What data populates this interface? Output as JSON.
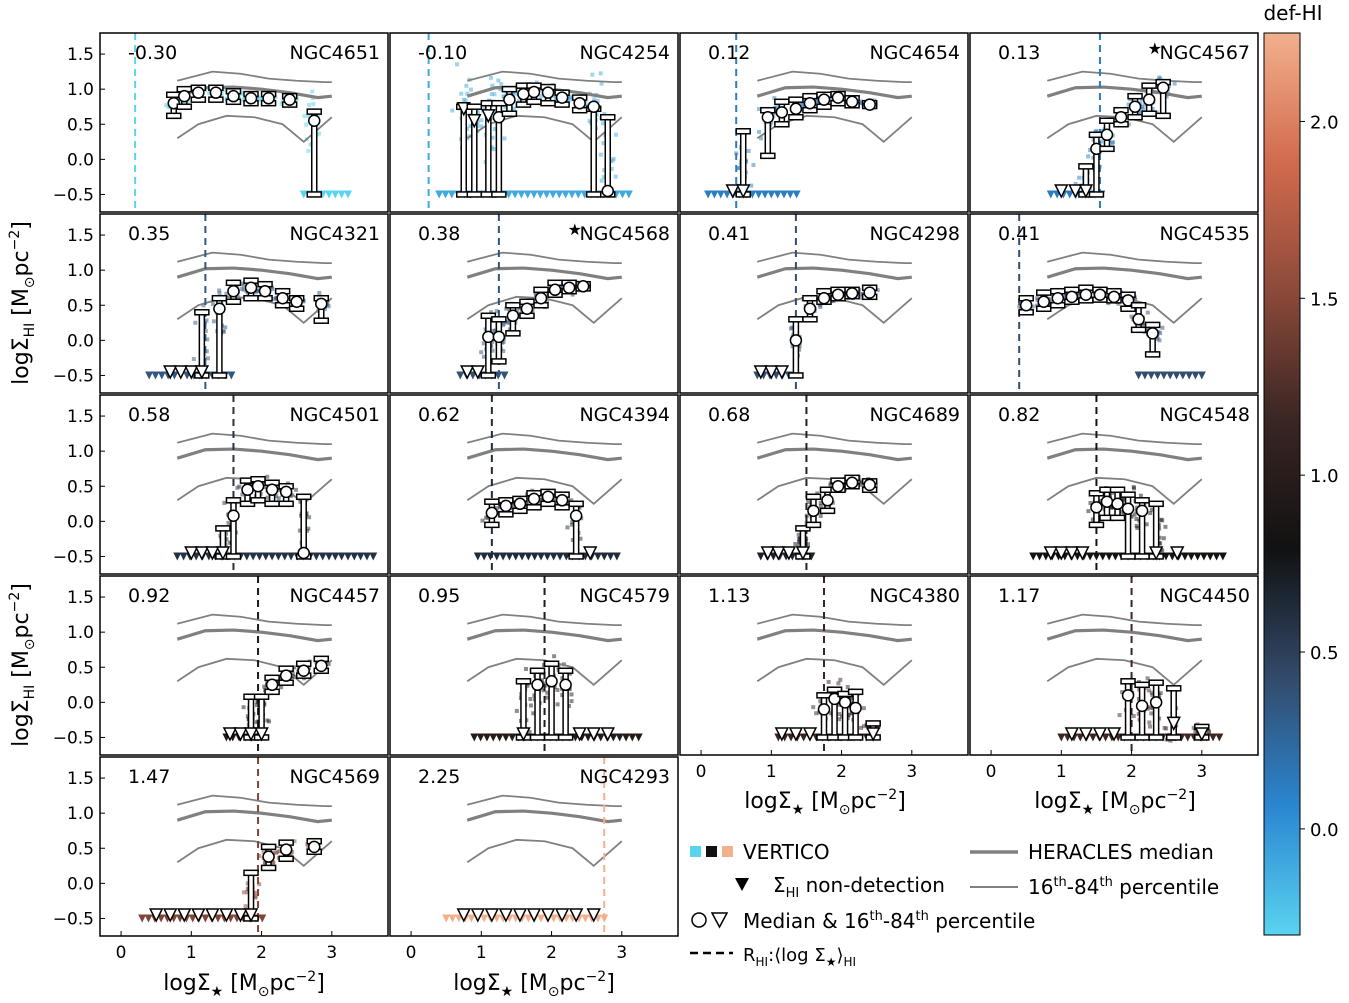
{
  "chart_data": {
    "type": "scatter",
    "colorbar": {
      "label": "def-HI",
      "range": [
        -0.3,
        2.25
      ],
      "ticks": [
        "0.0",
        "0.5",
        "1.0",
        "1.5",
        "2.0"
      ],
      "tick_values": [
        0.0,
        0.5,
        1.0,
        1.5,
        2.0
      ],
      "colormap": [
        "#5ad3f0",
        "#2a86d0",
        "#334a6a",
        "#111111",
        "#3a2624",
        "#8c4a3a",
        "#d16b4e",
        "#f2b08c"
      ]
    },
    "xlabel": "logΣ★ [M☉pc⁻²]",
    "ylabel": "logΣHI [M☉pc⁻²]",
    "xlim": [
      -0.3,
      3.8
    ],
    "ylim": [
      -0.75,
      1.8
    ],
    "xticks": [
      "0",
      "1",
      "2",
      "3"
    ],
    "xtick_values": [
      0,
      1,
      2,
      3
    ],
    "yticks": [
      "−0.5",
      "0.0",
      "0.5",
      "1.0",
      "1.5"
    ],
    "ytick_values": [
      -0.5,
      0.0,
      0.5,
      1.0,
      1.5
    ],
    "heracles_median": {
      "x": [
        0.8,
        1.2,
        1.6,
        2.0,
        2.4,
        2.8,
        3.0
      ],
      "y": [
        0.9,
        1.02,
        1.03,
        1.0,
        0.95,
        0.88,
        0.9
      ]
    },
    "heracles_p84": {
      "x": [
        0.8,
        1.3,
        1.7,
        2.1,
        2.5,
        2.9,
        3.0
      ],
      "y": [
        1.12,
        1.25,
        1.22,
        1.15,
        1.12,
        1.1,
        1.1
      ]
    },
    "heracles_p16": {
      "x": [
        0.8,
        1.1,
        1.5,
        1.9,
        2.3,
        2.6,
        3.0
      ],
      "y": [
        0.3,
        0.5,
        0.62,
        0.6,
        0.5,
        0.25,
        0.6
      ]
    },
    "panels": [
      {
        "name": "NGC4651",
        "def": "-0.30",
        "defv": -0.3,
        "star": false,
        "rhi": 0.2,
        "x": [
          0.75,
          0.9,
          1.1,
          1.35,
          1.6,
          1.85,
          2.1,
          2.4,
          2.75
        ],
        "y": [
          0.8,
          0.9,
          0.95,
          0.95,
          0.9,
          0.87,
          0.87,
          0.85,
          0.55
        ],
        "lo": [
          0.62,
          0.75,
          0.85,
          0.85,
          0.82,
          0.8,
          0.8,
          0.78,
          -0.5
        ],
        "hi": [
          0.92,
          1.0,
          1.02,
          1.02,
          0.97,
          0.93,
          0.93,
          0.9,
          0.68
        ],
        "tri": [],
        "nd": [
          2.6,
          3.25
        ]
      },
      {
        "name": "NGC4254",
        "def": "-0.10",
        "defv": -0.1,
        "star": false,
        "rhi": 0.25,
        "x": [
          0.75,
          0.9,
          1.1,
          1.25,
          1.4,
          1.6,
          1.75,
          1.95,
          2.15,
          2.4,
          2.6,
          2.8
        ],
        "y": [
          0.72,
          0.55,
          0.62,
          0.6,
          0.85,
          0.93,
          0.96,
          0.95,
          0.88,
          0.8,
          0.75,
          -0.45
        ],
        "lo": [
          -0.5,
          -0.5,
          -0.5,
          -0.5,
          0.65,
          0.78,
          0.82,
          0.8,
          0.78,
          0.7,
          -0.5,
          -0.5
        ],
        "hi": [
          0.75,
          0.75,
          0.8,
          0.8,
          1.0,
          1.05,
          1.05,
          1.03,
          0.95,
          0.88,
          0.72,
          0.6
        ],
        "tri": [
          0,
          1,
          2
        ],
        "nd": [
          0.4,
          3.1
        ]
      },
      {
        "name": "NGC4654",
        "def": "0.12",
        "defv": 0.12,
        "star": false,
        "rhi": 0.5,
        "x": [
          0.45,
          0.6,
          0.95,
          1.15,
          1.35,
          1.55,
          1.75,
          1.95,
          2.15,
          2.4
        ],
        "y": [
          -0.45,
          -0.45,
          0.6,
          0.67,
          0.72,
          0.8,
          0.85,
          0.88,
          0.82,
          0.78
        ],
        "lo": [
          -0.5,
          -0.5,
          0.05,
          0.5,
          0.6,
          0.7,
          0.75,
          0.8,
          0.77,
          0.76
        ],
        "hi": [
          -0.5,
          0.4,
          0.7,
          0.82,
          0.85,
          0.9,
          0.92,
          0.93,
          0.87,
          0.8
        ],
        "tri": [
          0,
          1
        ],
        "nd": [
          0.1,
          1.4
        ]
      },
      {
        "name": "NGC4567",
        "def": "0.13",
        "defv": 0.13,
        "star": true,
        "rhi": 1.55,
        "x": [
          1.0,
          1.2,
          1.35,
          1.5,
          1.65,
          1.85,
          2.05,
          2.25,
          2.45
        ],
        "y": [
          -0.45,
          -0.45,
          -0.45,
          0.15,
          0.35,
          0.6,
          0.75,
          0.85,
          1.02
        ],
        "lo": [
          -0.5,
          -0.5,
          -0.5,
          -0.5,
          0.15,
          0.5,
          0.6,
          0.65,
          0.62
        ],
        "hi": [
          -0.5,
          -0.5,
          -0.1,
          0.35,
          0.55,
          0.7,
          0.9,
          1.05,
          1.1
        ],
        "tri": [
          0,
          1,
          2
        ],
        "nd": [
          0.85,
          1.6
        ]
      },
      {
        "name": "NGC4321",
        "def": "0.35",
        "defv": 0.35,
        "star": false,
        "rhi": 1.2,
        "x": [
          0.7,
          0.85,
          1.0,
          1.15,
          1.4,
          1.6,
          1.85,
          2.05,
          2.3,
          2.5,
          2.85
        ],
        "y": [
          -0.45,
          -0.45,
          -0.45,
          -0.45,
          0.45,
          0.7,
          0.75,
          0.7,
          0.6,
          0.55,
          0.52
        ],
        "lo": [
          -0.5,
          -0.5,
          -0.5,
          -0.5,
          -0.5,
          0.55,
          0.6,
          0.6,
          0.5,
          0.45,
          0.28
        ],
        "hi": [
          -0.5,
          -0.5,
          -0.5,
          0.4,
          0.6,
          0.82,
          0.85,
          0.8,
          0.7,
          0.6,
          0.6
        ],
        "tri": [
          0,
          1,
          2,
          3
        ],
        "nd": [
          0.4,
          1.6
        ]
      },
      {
        "name": "NGC4568",
        "def": "0.38",
        "defv": 0.38,
        "star": true,
        "rhi": 1.25,
        "x": [
          0.8,
          0.95,
          1.1,
          1.25,
          1.45,
          1.65,
          1.85,
          2.05,
          2.25,
          2.45
        ],
        "y": [
          -0.45,
          -0.45,
          0.05,
          0.05,
          0.35,
          0.45,
          0.6,
          0.72,
          0.75,
          0.77
        ],
        "lo": [
          -0.5,
          -0.5,
          -0.5,
          -0.3,
          0.1,
          0.35,
          0.5,
          0.65,
          0.7,
          0.74
        ],
        "hi": [
          -0.5,
          -0.5,
          0.35,
          0.3,
          0.5,
          0.55,
          0.72,
          0.82,
          0.82,
          0.8
        ],
        "tri": [
          0,
          1
        ],
        "nd": [
          0.7,
          1.4
        ]
      },
      {
        "name": "NGC4298",
        "def": "0.41",
        "defv": 0.41,
        "star": false,
        "rhi": 1.35,
        "x": [
          0.85,
          1.0,
          1.15,
          1.35,
          1.55,
          1.75,
          1.95,
          2.15,
          2.4
        ],
        "y": [
          -0.45,
          -0.45,
          -0.45,
          0.0,
          0.45,
          0.6,
          0.65,
          0.67,
          0.68
        ],
        "lo": [
          -0.5,
          -0.5,
          -0.5,
          -0.5,
          0.3,
          0.55,
          0.6,
          0.63,
          0.62
        ],
        "hi": [
          -0.5,
          -0.5,
          -0.5,
          0.3,
          0.6,
          0.7,
          0.72,
          0.72,
          0.75
        ],
        "tri": [
          0,
          1,
          2
        ],
        "nd": [
          0.8,
          1.3
        ]
      },
      {
        "name": "NGC4535",
        "def": "0.41",
        "defv": 0.41,
        "star": false,
        "rhi": 0.4,
        "x": [
          0.5,
          0.75,
          0.95,
          1.15,
          1.35,
          1.55,
          1.75,
          1.95,
          2.1,
          2.3
        ],
        "y": [
          0.5,
          0.55,
          0.6,
          0.62,
          0.65,
          0.65,
          0.62,
          0.57,
          0.3,
          0.1
        ],
        "lo": [
          0.4,
          0.45,
          0.5,
          0.55,
          0.57,
          0.58,
          0.57,
          0.45,
          0.15,
          -0.2
        ],
        "hi": [
          0.6,
          0.68,
          0.7,
          0.72,
          0.75,
          0.72,
          0.7,
          0.65,
          0.5,
          0.22
        ],
        "tri": [],
        "nd": [
          2.1,
          3.0
        ]
      },
      {
        "name": "NGC4501",
        "def": "0.58",
        "defv": 0.58,
        "star": false,
        "rhi": 1.6,
        "x": [
          1.0,
          1.15,
          1.3,
          1.45,
          1.6,
          1.8,
          1.95,
          2.15,
          2.35,
          2.6
        ],
        "y": [
          -0.45,
          -0.45,
          -0.45,
          -0.45,
          0.08,
          0.45,
          0.5,
          0.45,
          0.42,
          -0.45
        ],
        "lo": [
          -0.5,
          -0.5,
          -0.5,
          -0.5,
          -0.5,
          0.25,
          0.3,
          0.25,
          0.25,
          -0.5
        ],
        "hi": [
          -0.5,
          -0.5,
          -0.5,
          -0.1,
          0.3,
          0.58,
          0.6,
          0.55,
          0.5,
          0.35
        ],
        "tri": [
          0,
          1,
          2,
          3
        ],
        "nd": [
          0.8,
          3.6
        ]
      },
      {
        "name": "NGC4394",
        "def": "0.62",
        "defv": 0.62,
        "star": false,
        "rhi": 1.15,
        "x": [
          1.15,
          1.35,
          1.55,
          1.75,
          1.95,
          2.15,
          2.35,
          2.55
        ],
        "y": [
          0.12,
          0.22,
          0.25,
          0.32,
          0.35,
          0.3,
          0.08,
          -0.45
        ],
        "lo": [
          -0.05,
          0.1,
          0.15,
          0.2,
          0.25,
          0.2,
          -0.5,
          -0.5
        ],
        "hi": [
          0.28,
          0.3,
          0.32,
          0.4,
          0.42,
          0.38,
          0.25,
          -0.5
        ],
        "tri": [
          7
        ],
        "nd": [
          0.95,
          3.0
        ]
      },
      {
        "name": "NGC4689",
        "def": "0.68",
        "defv": 0.68,
        "star": false,
        "rhi": 1.5,
        "x": [
          0.95,
          1.1,
          1.25,
          1.45,
          1.6,
          1.8,
          1.95,
          2.15,
          2.4
        ],
        "y": [
          -0.45,
          -0.45,
          -0.45,
          -0.45,
          0.15,
          0.3,
          0.5,
          0.55,
          0.52
        ],
        "lo": [
          -0.5,
          -0.5,
          -0.5,
          -0.5,
          -0.05,
          0.15,
          0.45,
          0.5,
          0.45
        ],
        "hi": [
          -0.5,
          -0.5,
          -0.5,
          -0.1,
          0.35,
          0.45,
          0.58,
          0.62,
          0.57
        ],
        "tri": [
          0,
          1,
          2,
          3
        ],
        "nd": [
          0.85,
          1.6
        ]
      },
      {
        "name": "NGC4548",
        "def": "0.82",
        "defv": 0.82,
        "star": false,
        "rhi": 1.5,
        "x": [
          0.85,
          1.0,
          1.15,
          1.3,
          1.5,
          1.65,
          1.8,
          1.95,
          2.15,
          2.35,
          2.65
        ],
        "y": [
          -0.45,
          -0.45,
          -0.45,
          -0.45,
          0.2,
          0.28,
          0.25,
          0.18,
          0.15,
          -0.45,
          -0.45
        ],
        "lo": [
          -0.5,
          -0.5,
          -0.5,
          -0.5,
          -0.05,
          0.05,
          0.05,
          -0.5,
          -0.5,
          -0.5,
          -0.5
        ],
        "hi": [
          -0.5,
          -0.5,
          -0.5,
          -0.5,
          0.4,
          0.45,
          0.45,
          0.38,
          0.3,
          0.25,
          -0.5
        ],
        "tri": [
          0,
          1,
          2,
          3,
          9,
          10
        ],
        "nd": [
          0.6,
          3.3
        ]
      },
      {
        "name": "NGC4457",
        "def": "0.92",
        "defv": 0.92,
        "star": false,
        "rhi": 1.95,
        "x": [
          1.55,
          1.7,
          1.85,
          2.0,
          2.15,
          2.35,
          2.6,
          2.85
        ],
        "y": [
          -0.45,
          -0.45,
          -0.45,
          -0.45,
          0.25,
          0.38,
          0.45,
          0.52
        ],
        "lo": [
          -0.5,
          -0.5,
          -0.5,
          -0.5,
          0.15,
          0.28,
          0.38,
          0.45
        ],
        "hi": [
          -0.5,
          -0.5,
          0.08,
          0.08,
          0.35,
          0.48,
          0.55,
          0.62
        ],
        "tri": [
          0,
          1,
          2,
          3
        ],
        "nd": [
          1.5,
          2.0
        ]
      },
      {
        "name": "NGC4579",
        "def": "0.95",
        "defv": 0.95,
        "star": false,
        "rhi": 1.9,
        "x": [
          1.6,
          1.8,
          2.0,
          2.2,
          2.4,
          2.6,
          2.8
        ],
        "y": [
          -0.45,
          0.25,
          0.3,
          0.25,
          -0.45,
          -0.45,
          -0.45
        ],
        "lo": [
          -0.5,
          -0.5,
          -0.5,
          -0.5,
          -0.5,
          -0.5,
          -0.5
        ],
        "hi": [
          0.3,
          0.45,
          0.55,
          0.45,
          -0.5,
          -0.5,
          -0.5
        ],
        "tri": [
          0,
          4,
          5,
          6
        ],
        "nd": [
          0.9,
          3.3
        ]
      },
      {
        "name": "NGC4380",
        "def": "1.13",
        "defv": 1.13,
        "star": false,
        "rhi": 1.75,
        "x": [
          1.15,
          1.35,
          1.55,
          1.75,
          1.9,
          2.05,
          2.2,
          2.45
        ],
        "y": [
          -0.45,
          -0.45,
          -0.45,
          -0.1,
          0.05,
          0.0,
          -0.08,
          -0.45
        ],
        "lo": [
          -0.5,
          -0.5,
          -0.5,
          -0.5,
          -0.5,
          -0.5,
          -0.5,
          -0.5
        ],
        "hi": [
          -0.5,
          -0.5,
          -0.5,
          0.1,
          0.18,
          0.12,
          0.15,
          -0.3
        ],
        "tri": [
          0,
          1,
          2,
          7
        ],
        "nd": [
          1.1,
          2.5
        ]
      },
      {
        "name": "NGC4450",
        "def": "1.17",
        "defv": 1.17,
        "star": false,
        "rhi": 2.0,
        "x": [
          1.15,
          1.35,
          1.55,
          1.75,
          1.95,
          2.15,
          2.35,
          2.6,
          3.0
        ],
        "y": [
          -0.45,
          -0.45,
          -0.45,
          -0.45,
          0.1,
          -0.05,
          0.0,
          -0.3,
          -0.45
        ],
        "lo": [
          -0.5,
          -0.5,
          -0.5,
          -0.5,
          -0.5,
          -0.5,
          -0.5,
          -0.5,
          -0.5
        ],
        "hi": [
          -0.5,
          -0.5,
          -0.5,
          -0.5,
          0.3,
          0.25,
          0.28,
          0.2,
          -0.35
        ],
        "tri": [
          0,
          1,
          2,
          3,
          7,
          8
        ],
        "nd": [
          1.0,
          3.3
        ]
      },
      {
        "name": "NGC4569",
        "def": "1.47",
        "defv": 1.47,
        "star": false,
        "rhi": 1.95,
        "x": [
          0.5,
          0.7,
          0.9,
          1.1,
          1.3,
          1.5,
          1.7,
          1.85,
          2.1,
          2.35,
          2.75
        ],
        "y": [
          -0.45,
          -0.45,
          -0.45,
          -0.45,
          -0.45,
          -0.45,
          -0.45,
          -0.45,
          0.38,
          0.48,
          0.52
        ],
        "lo": [
          -0.5,
          -0.5,
          -0.5,
          -0.5,
          -0.5,
          -0.5,
          -0.5,
          -0.5,
          0.22,
          0.35,
          0.45
        ],
        "hi": [
          -0.5,
          -0.5,
          -0.5,
          -0.5,
          -0.5,
          -0.5,
          -0.5,
          0.15,
          0.52,
          0.58,
          0.6
        ],
        "tri": [
          0,
          1,
          2,
          3,
          4,
          5,
          6,
          7
        ],
        "nd": [
          0.3,
          2.05
        ]
      },
      {
        "name": "NGC4293",
        "def": "2.25",
        "defv": 2.25,
        "star": false,
        "rhi": 2.75,
        "x": [
          0.75,
          0.95,
          1.15,
          1.35,
          1.55,
          1.75,
          1.95,
          2.15,
          2.35,
          2.6
        ],
        "y": [
          -0.45,
          -0.45,
          -0.45,
          -0.45,
          -0.45,
          -0.45,
          -0.45,
          -0.45,
          -0.45,
          -0.45
        ],
        "lo": [
          -0.5,
          -0.5,
          -0.5,
          -0.5,
          -0.5,
          -0.5,
          -0.5,
          -0.5,
          -0.5,
          -0.5
        ],
        "hi": [
          -0.5,
          -0.5,
          -0.5,
          -0.5,
          -0.5,
          -0.5,
          -0.5,
          -0.5,
          -0.5,
          -0.5
        ],
        "tri": [
          0,
          1,
          2,
          3,
          4,
          5,
          6,
          7,
          8,
          9
        ],
        "nd": [
          0.5,
          2.75
        ]
      }
    ],
    "legend": {
      "vertico": "VERTICO",
      "nondet": "ΣHI non-detection",
      "median": "Median & 16th-84th percentile",
      "rhi": "RHI:⟨log Σ★⟩HI",
      "heracles_median": "HERACLES median",
      "percentile": "16th-84th percentile"
    }
  }
}
